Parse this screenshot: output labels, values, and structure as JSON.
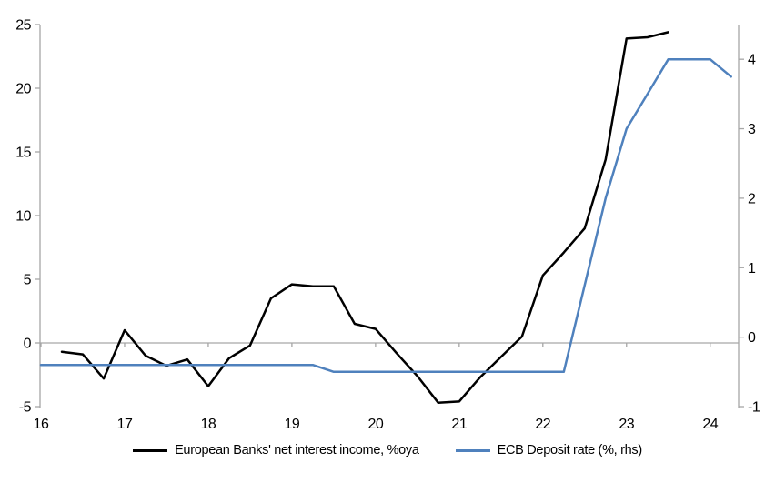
{
  "chart_data": {
    "type": "line",
    "title": "",
    "x_axis": {
      "min": 16,
      "max": 24.34,
      "ticks": [
        16,
        17,
        18,
        19,
        20,
        21,
        22,
        23,
        24
      ],
      "tick_labels": [
        "16",
        "17",
        "18",
        "19",
        "20",
        "21",
        "22",
        "23",
        "24"
      ]
    },
    "left_axis": {
      "min": -5,
      "max": 25,
      "ticks": [
        25,
        20,
        15,
        10,
        5,
        0,
        -5
      ]
    },
    "right_axis": {
      "min": -1,
      "max": 4.5,
      "ticks": [
        4,
        3,
        2,
        1,
        0,
        -1
      ]
    },
    "grid": "zero-line-only",
    "legend_position": "bottom",
    "series": [
      {
        "name": "European Banks' net interest income, %oya",
        "axis": "left",
        "color": "#000000",
        "x": [
          16.25,
          16.5,
          16.75,
          17.0,
          17.25,
          17.5,
          17.75,
          18.0,
          18.25,
          18.5,
          18.75,
          19.0,
          19.25,
          19.5,
          19.75,
          20.0,
          20.25,
          20.5,
          20.75,
          21.0,
          21.25,
          21.5,
          21.75,
          22.0,
          22.25,
          22.5,
          22.75,
          23.0,
          23.25,
          23.5
        ],
        "values": [
          -0.7,
          -0.9,
          -2.8,
          1.0,
          -1.0,
          -1.8,
          -1.3,
          -3.4,
          -1.2,
          -0.2,
          3.5,
          4.6,
          4.45,
          4.45,
          1.5,
          1.1,
          -0.8,
          -2.6,
          -4.7,
          -4.6,
          -2.7,
          -1.1,
          0.5,
          5.3,
          7.1,
          9.0,
          14.4,
          23.9,
          24.0,
          24.4
        ]
      },
      {
        "name": "ECB Deposit rate (%, rhs)",
        "axis": "right",
        "color": "#4f81bd",
        "x": [
          16.0,
          16.25,
          16.5,
          16.75,
          17.0,
          17.25,
          17.5,
          17.75,
          18.0,
          18.25,
          18.5,
          18.75,
          19.0,
          19.25,
          19.5,
          19.75,
          20.0,
          20.25,
          20.5,
          20.75,
          21.0,
          21.25,
          21.5,
          21.75,
          22.0,
          22.25,
          22.5,
          22.75,
          23.0,
          23.25,
          23.5,
          23.75,
          24.0,
          24.25
        ],
        "values": [
          -0.4,
          -0.4,
          -0.4,
          -0.4,
          -0.4,
          -0.4,
          -0.4,
          -0.4,
          -0.4,
          -0.4,
          -0.4,
          -0.4,
          -0.4,
          -0.4,
          -0.5,
          -0.5,
          -0.5,
          -0.5,
          -0.5,
          -0.5,
          -0.5,
          -0.5,
          -0.5,
          -0.5,
          -0.5,
          -0.5,
          0.75,
          2.0,
          3.0,
          3.5,
          4.0,
          4.0,
          4.0,
          3.75
        ]
      }
    ]
  },
  "colors": {
    "axis_gray": "#a6a6a6",
    "zero_line_gray": "#a6a6a6"
  }
}
